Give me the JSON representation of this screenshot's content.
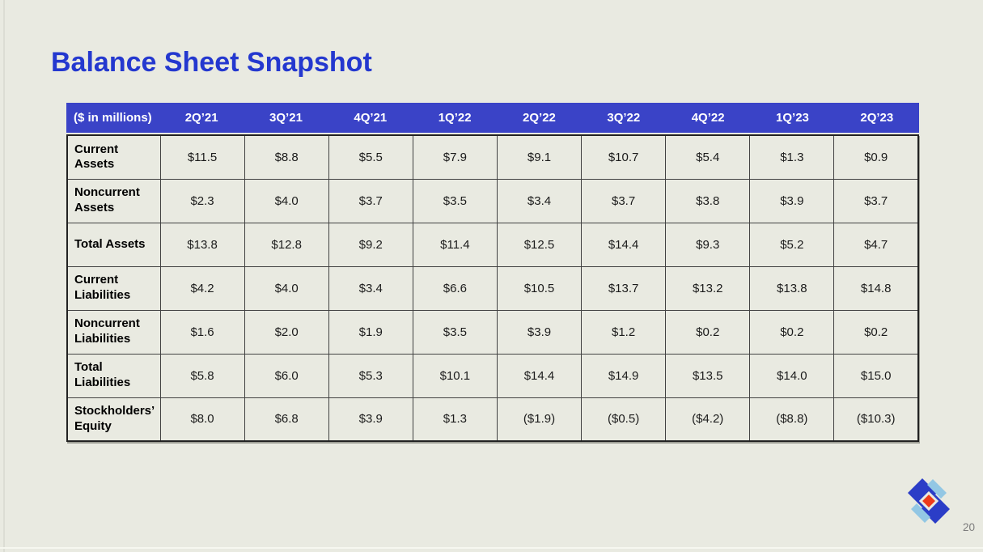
{
  "slide": {
    "title": "Balance Sheet Snapshot",
    "page_number": "20"
  },
  "colors": {
    "title_blue": "#2438cf",
    "header_bar_blue": "#3a43c7",
    "header_text": "#ffffff",
    "slide_background": "#e9eae1",
    "table_border": "#424242",
    "value_text": "#1c1c1c",
    "page_number_gray": "#7c7c7c",
    "logo_dark_blue": "#2b3dc7",
    "logo_light_blue": "#93c7e4",
    "logo_red": "#ee3b1a"
  },
  "logo": {
    "icon": "diamond-pinwheel-logo"
  },
  "table": {
    "unit_label": "($ in millions)",
    "columns": [
      "2Q’21",
      "3Q’21",
      "4Q’21",
      "1Q’22",
      "2Q’22",
      "3Q’22",
      "4Q’22",
      "1Q’23",
      "2Q’23"
    ],
    "rows": [
      {
        "label": "Current Assets",
        "values": [
          "$11.5",
          "$8.8",
          "$5.5",
          "$7.9",
          "$9.1",
          "$10.7",
          "$5.4",
          "$1.3",
          "$0.9"
        ]
      },
      {
        "label": "Noncurrent Assets",
        "values": [
          "$2.3",
          "$4.0",
          "$3.7",
          "$3.5",
          "$3.4",
          "$3.7",
          "$3.8",
          "$3.9",
          "$3.7"
        ]
      },
      {
        "label": "Total Assets",
        "values": [
          "$13.8",
          "$12.8",
          "$9.2",
          "$11.4",
          "$12.5",
          "$14.4",
          "$9.3",
          "$5.2",
          "$4.7"
        ]
      },
      {
        "label": "Current Liabilities",
        "values": [
          "$4.2",
          "$4.0",
          "$3.4",
          "$6.6",
          "$10.5",
          "$13.7",
          "$13.2",
          "$13.8",
          "$14.8"
        ]
      },
      {
        "label": "Noncurrent Liabilities",
        "values": [
          "$1.6",
          "$2.0",
          "$1.9",
          "$3.5",
          "$3.9",
          "$1.2",
          "$0.2",
          "$0.2",
          "$0.2"
        ]
      },
      {
        "label": "Total Liabilities",
        "values": [
          "$5.8",
          "$6.0",
          "$5.3",
          "$10.1",
          "$14.4",
          "$14.9",
          "$13.5",
          "$14.0",
          "$15.0"
        ]
      },
      {
        "label": "Stockholders’ Equity",
        "values": [
          "$8.0",
          "$6.8",
          "$3.9",
          "$1.3",
          "($1.9)",
          "($0.5)",
          "($4.2)",
          "($8.8)",
          "($10.3)"
        ]
      }
    ]
  }
}
